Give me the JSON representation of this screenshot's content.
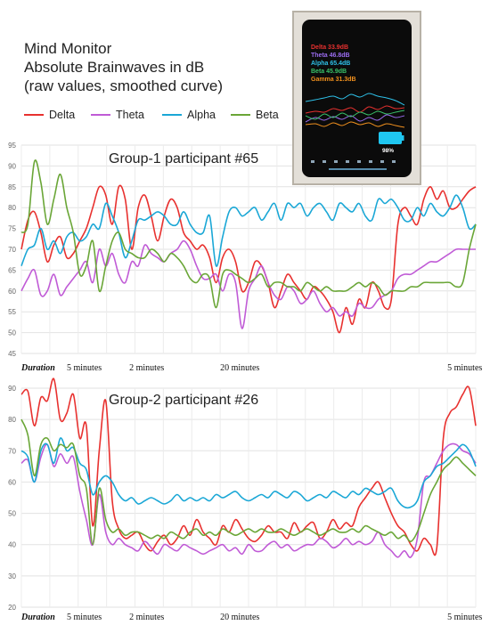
{
  "title_lines": [
    "Mind Monitor",
    "Absolute Brainwaves in dB",
    "(raw values, smoothed curve)"
  ],
  "legend": [
    {
      "name": "Delta",
      "color": "#e8312f"
    },
    {
      "name": "Theta",
      "color": "#c05bd6"
    },
    {
      "name": "Alpha",
      "color": "#1aa7d6"
    },
    {
      "name": "Beta",
      "color": "#6aa637"
    }
  ],
  "inset": {
    "labels": [
      {
        "text": "Delta 33.9dB",
        "color": "#e8312f"
      },
      {
        "text": "Theta 46.8dB",
        "color": "#9b6cf0"
      },
      {
        "text": "Alpha 65.4dB",
        "color": "#2ec0e8"
      },
      {
        "text": "Beta 45.9dB",
        "color": "#39c26a"
      },
      {
        "text": "Gamma 31.3dB",
        "color": "#f0901e"
      }
    ],
    "battery": "98%"
  },
  "chart_data": [
    {
      "type": "line",
      "title": "Group-1 participant #65",
      "ylim": [
        45,
        95
      ],
      "yticks": [
        45,
        50,
        55,
        60,
        65,
        70,
        75,
        80,
        85,
        90,
        95
      ],
      "xlim": [
        0,
        80
      ],
      "grid": true,
      "x_labels": [
        {
          "text": "Duration",
          "x": 0,
          "italic": true
        },
        {
          "text": "5 minutes",
          "x": 8
        },
        {
          "text": "2 minutes",
          "x": 19
        },
        {
          "text": "20 minutes",
          "x": 35
        },
        {
          "text": "5 minutes",
          "x": 75
        }
      ],
      "series": [
        {
          "name": "Delta",
          "color": "#e8312f",
          "values": [
            70,
            77,
            79,
            74,
            67,
            71,
            73,
            68,
            69,
            72,
            75,
            80,
            85,
            83,
            76,
            85,
            82,
            70,
            80,
            83,
            78,
            72,
            78,
            82,
            80,
            74,
            72,
            70,
            71,
            68,
            62,
            68,
            70,
            67,
            60,
            62,
            67,
            66,
            62,
            56,
            60,
            64,
            62,
            60,
            58,
            61,
            60,
            58,
            55,
            50,
            56,
            52,
            58,
            56,
            62,
            60,
            56,
            58,
            76,
            80,
            78,
            76,
            82,
            85,
            82,
            84,
            80,
            80,
            82,
            84,
            85
          ]
        },
        {
          "name": "Theta",
          "color": "#c05bd6",
          "values": [
            60,
            63,
            65,
            59,
            60,
            64,
            59,
            61,
            63,
            65,
            67,
            62,
            70,
            66,
            69,
            64,
            62,
            67,
            66,
            71,
            69,
            68,
            67,
            69,
            70,
            72,
            70,
            66,
            63,
            63,
            64,
            60,
            64,
            62,
            51,
            60,
            63,
            66,
            62,
            59,
            58,
            61,
            60,
            57,
            58,
            60,
            57,
            55,
            56,
            54,
            55,
            54,
            57,
            56,
            56,
            58,
            59,
            60,
            63,
            64,
            64,
            65,
            66,
            67,
            67,
            68,
            69,
            70,
            70,
            70,
            70
          ]
        },
        {
          "name": "Alpha",
          "color": "#1aa7d6",
          "values": [
            66,
            70,
            71,
            75,
            70,
            72,
            69,
            73,
            74,
            72,
            73,
            76,
            75,
            81,
            78,
            74,
            68,
            72,
            77,
            77,
            78,
            79,
            78,
            76,
            76,
            79,
            76,
            74,
            74,
            78,
            66,
            73,
            79,
            80,
            78,
            79,
            80,
            77,
            79,
            81,
            77,
            81,
            80,
            81,
            78,
            80,
            81,
            79,
            77,
            81,
            80,
            79,
            81,
            78,
            77,
            82,
            81,
            82,
            80,
            77,
            77,
            80,
            78,
            81,
            79,
            78,
            80,
            83,
            80,
            75,
            76
          ]
        },
        {
          "name": "Beta",
          "color": "#6aa637",
          "values": [
            74,
            76,
            91,
            86,
            76,
            82,
            88,
            80,
            74,
            64,
            66,
            72,
            60,
            66,
            72,
            74,
            70,
            69,
            68,
            68,
            70,
            69,
            67,
            69,
            68,
            66,
            63,
            62,
            64,
            63,
            56,
            64,
            65,
            64,
            63,
            62,
            63,
            64,
            61,
            62,
            62,
            61,
            61,
            60,
            62,
            61,
            60,
            61,
            60,
            60,
            60,
            61,
            62,
            61,
            62,
            61,
            59,
            60,
            60,
            60,
            61,
            61,
            62,
            62,
            62,
            62,
            62,
            61,
            62,
            70,
            76
          ]
        }
      ]
    },
    {
      "type": "line",
      "title": "Group-2 participant #26",
      "ylim": [
        20,
        90
      ],
      "yticks": [
        20,
        30,
        40,
        50,
        60,
        70,
        80,
        90
      ],
      "xlim": [
        0,
        80
      ],
      "grid": true,
      "x_labels": [
        {
          "text": "Duration",
          "x": 0,
          "italic": true
        },
        {
          "text": "5 minutes",
          "x": 8
        },
        {
          "text": "2 minutes",
          "x": 19
        },
        {
          "text": "20 minutes",
          "x": 35
        },
        {
          "text": "5 minutes",
          "x": 75
        }
      ],
      "series": [
        {
          "name": "Delta",
          "color": "#e8312f",
          "values": [
            88,
            89,
            78,
            87,
            86,
            93,
            80,
            82,
            88,
            74,
            78,
            46,
            70,
            86,
            54,
            45,
            42,
            43,
            44,
            40,
            38,
            41,
            43,
            40,
            42,
            46,
            43,
            48,
            44,
            42,
            40,
            46,
            44,
            48,
            45,
            42,
            41,
            43,
            46,
            44,
            44,
            42,
            47,
            44,
            46,
            47,
            42,
            44,
            48,
            45,
            47,
            46,
            52,
            55,
            58,
            60,
            55,
            50,
            46,
            44,
            40,
            38,
            42,
            40,
            39,
            74,
            82,
            84,
            88,
            90,
            78
          ]
        },
        {
          "name": "Theta",
          "color": "#c05bd6",
          "values": [
            66,
            67,
            60,
            68,
            72,
            65,
            69,
            66,
            68,
            57,
            48,
            40,
            56,
            44,
            40,
            42,
            40,
            39,
            38,
            41,
            39,
            37,
            40,
            39,
            38,
            40,
            39,
            38,
            37,
            38,
            39,
            40,
            38,
            39,
            37,
            40,
            38,
            38,
            40,
            41,
            39,
            40,
            38,
            39,
            40,
            40,
            42,
            41,
            39,
            40,
            42,
            40,
            41,
            40,
            41,
            44,
            40,
            38,
            36,
            38,
            36,
            42,
            60,
            62,
            66,
            70,
            72,
            72,
            70,
            69,
            66
          ]
        },
        {
          "name": "Alpha",
          "color": "#1aa7d6",
          "values": [
            70,
            68,
            60,
            70,
            72,
            66,
            74,
            70,
            71,
            66,
            64,
            56,
            60,
            62,
            60,
            56,
            54,
            55,
            53,
            54,
            55,
            54,
            53,
            54,
            56,
            54,
            55,
            54,
            55,
            54,
            56,
            55,
            56,
            57,
            55,
            54,
            55,
            56,
            55,
            57,
            56,
            55,
            57,
            56,
            54,
            55,
            56,
            55,
            57,
            56,
            55,
            57,
            56,
            58,
            57,
            56,
            57,
            58,
            54,
            52,
            52,
            54,
            60,
            62,
            65,
            66,
            68,
            70,
            72,
            70,
            65
          ]
        },
        {
          "name": "Beta",
          "color": "#6aa637",
          "values": [
            80,
            75,
            62,
            72,
            74,
            70,
            72,
            71,
            72,
            62,
            58,
            40,
            58,
            48,
            44,
            45,
            43,
            44,
            44,
            43,
            42,
            43,
            42,
            44,
            43,
            42,
            44,
            45,
            43,
            44,
            43,
            45,
            44,
            43,
            44,
            45,
            44,
            45,
            44,
            44,
            45,
            44,
            43,
            44,
            45,
            44,
            43,
            44,
            45,
            44,
            44,
            45,
            44,
            46,
            45,
            44,
            43,
            44,
            42,
            43,
            41,
            44,
            50,
            56,
            60,
            64,
            66,
            68,
            66,
            64,
            62
          ]
        }
      ]
    }
  ]
}
